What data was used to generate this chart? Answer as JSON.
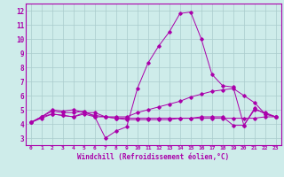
{
  "xlabel": "Windchill (Refroidissement éolien,°C)",
  "background_color": "#ceecea",
  "grid_color": "#aacccc",
  "line_color": "#aa00aa",
  "spine_color": "#aa00aa",
  "xlim": [
    -0.5,
    23.5
  ],
  "ylim": [
    2.5,
    12.5
  ],
  "xticks": [
    0,
    1,
    2,
    3,
    4,
    5,
    6,
    7,
    8,
    9,
    10,
    11,
    12,
    13,
    14,
    15,
    16,
    17,
    18,
    19,
    20,
    21,
    22,
    23
  ],
  "yticks": [
    3,
    4,
    5,
    6,
    7,
    8,
    9,
    10,
    11,
    12
  ],
  "lines": [
    {
      "x": [
        0,
        1,
        2,
        3,
        4,
        5,
        6,
        7,
        8,
        9,
        10,
        11,
        12,
        13,
        14,
        15,
        16,
        17,
        18,
        19,
        20,
        21,
        22,
        23
      ],
      "y": [
        4.1,
        4.5,
        4.9,
        4.8,
        4.8,
        4.9,
        4.5,
        3.0,
        3.5,
        3.8,
        6.5,
        8.3,
        9.5,
        10.5,
        11.8,
        11.9,
        10.0,
        7.5,
        6.7,
        6.6,
        3.9,
        5.1,
        4.7,
        4.5
      ]
    },
    {
      "x": [
        0,
        1,
        2,
        3,
        4,
        5,
        6,
        7,
        8,
        9,
        10,
        11,
        12,
        13,
        14,
        15,
        16,
        17,
        18,
        19,
        20,
        21,
        22,
        23
      ],
      "y": [
        4.1,
        4.4,
        4.7,
        4.6,
        4.5,
        4.7,
        4.5,
        4.5,
        4.5,
        4.5,
        4.8,
        5.0,
        5.2,
        5.4,
        5.6,
        5.9,
        6.1,
        6.3,
        6.4,
        6.5,
        6.0,
        5.5,
        4.7,
        4.5
      ]
    },
    {
      "x": [
        0,
        1,
        2,
        3,
        4,
        5,
        6,
        7,
        8,
        9,
        10,
        11,
        12,
        13,
        14,
        15,
        16,
        17,
        18,
        19,
        20,
        21,
        22,
        23
      ],
      "y": [
        4.1,
        4.5,
        5.0,
        4.9,
        5.0,
        4.8,
        4.6,
        4.5,
        4.4,
        4.4,
        4.4,
        4.4,
        4.4,
        4.4,
        4.4,
        4.4,
        4.4,
        4.4,
        4.4,
        4.4,
        4.4,
        4.4,
        4.5,
        4.5
      ]
    },
    {
      "x": [
        0,
        1,
        2,
        3,
        4,
        5,
        6,
        7,
        8,
        9,
        10,
        11,
        12,
        13,
        14,
        15,
        16,
        17,
        18,
        19,
        20,
        21,
        22,
        23
      ],
      "y": [
        4.1,
        4.5,
        4.7,
        4.6,
        4.5,
        4.8,
        4.8,
        4.5,
        4.4,
        4.3,
        4.3,
        4.3,
        4.3,
        4.3,
        4.4,
        4.4,
        4.5,
        4.5,
        4.5,
        3.9,
        3.9,
        5.0,
        4.8,
        4.5
      ]
    }
  ]
}
